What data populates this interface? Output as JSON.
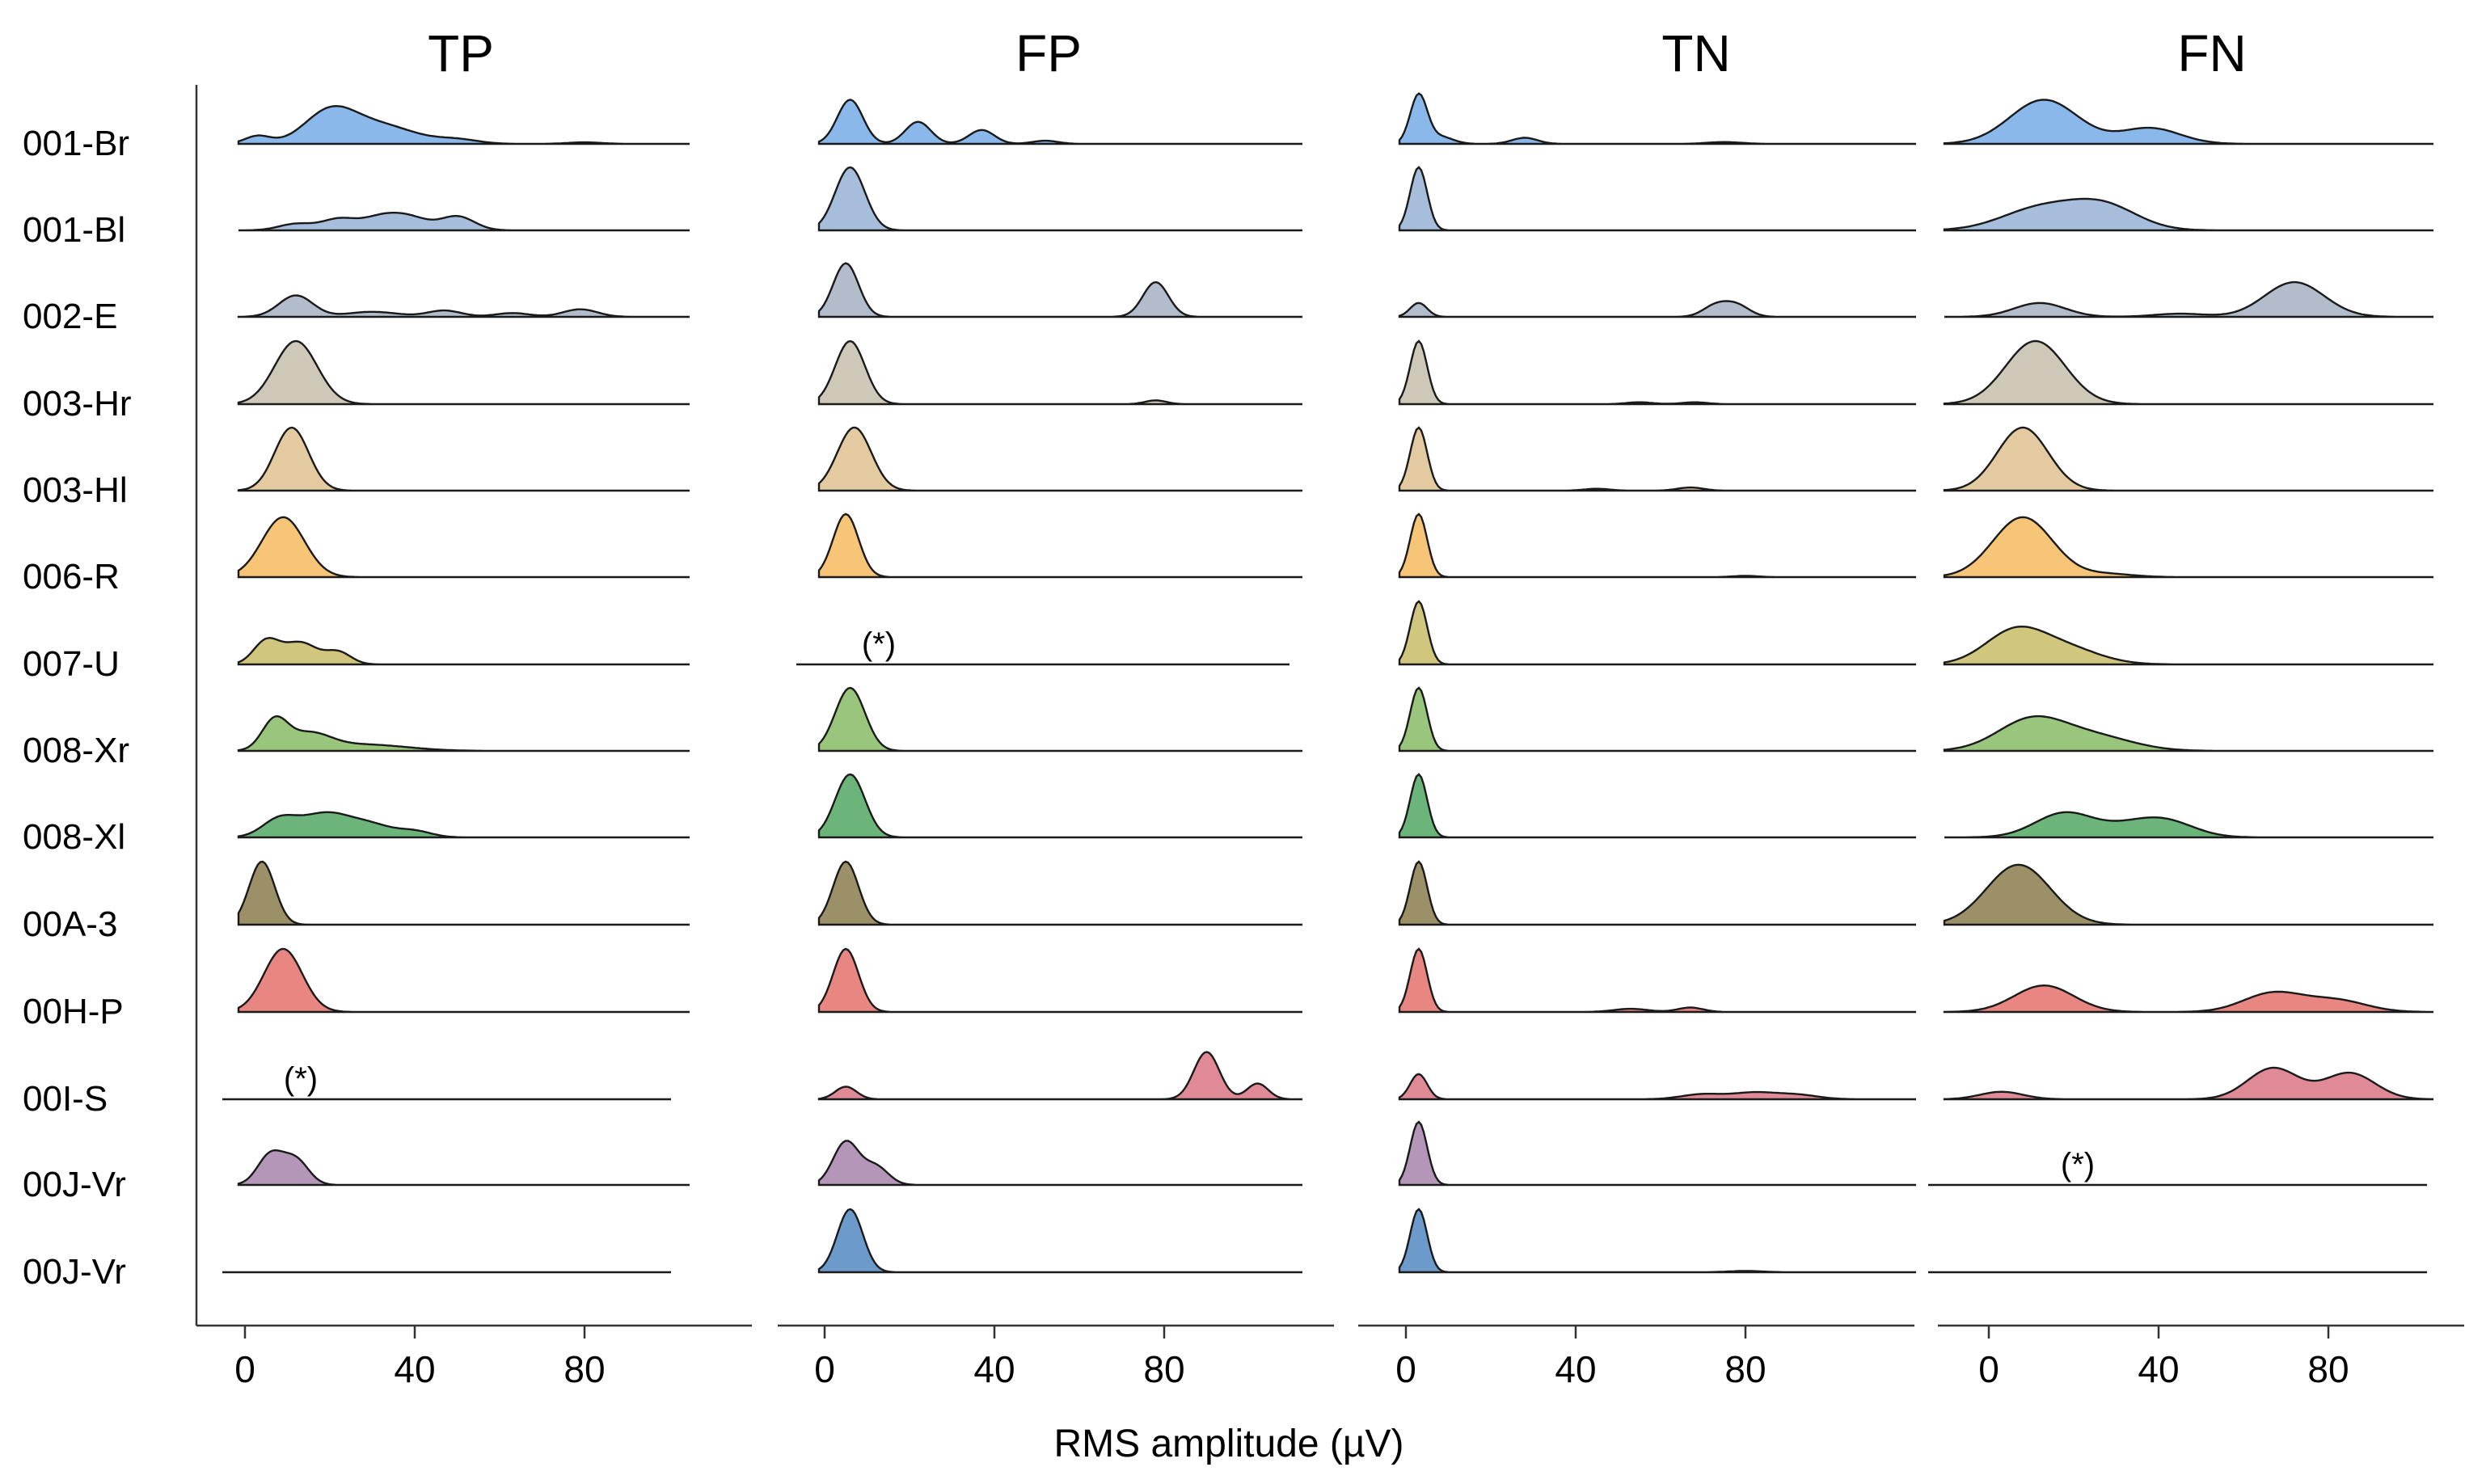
{
  "chart_data": {
    "type": "ridgeline",
    "xlabel": "RMS amplitude (µV)",
    "xticks": [
      0,
      40,
      80
    ],
    "panels": [
      "TP",
      "FP",
      "TN",
      "FN"
    ],
    "rows": [
      {
        "label": "001-Br",
        "color": "#8ab8ea"
      },
      {
        "label": "001-Bl",
        "color": "#a6bedb"
      },
      {
        "label": "002-E",
        "color": "#b3bccb"
      },
      {
        "label": "003-Hr",
        "color": "#cdc8b8"
      },
      {
        "label": "003-Hl",
        "color": "#e3caa0"
      },
      {
        "label": "006-R",
        "color": "#f7c577"
      },
      {
        "label": "007-U",
        "color": "#d1c67e"
      },
      {
        "label": "008-Xr",
        "color": "#9ac57c"
      },
      {
        "label": "008-Xl",
        "color": "#6cb57a"
      },
      {
        "label": "00A-3",
        "color": "#9c9068"
      },
      {
        "label": "00H-P",
        "color": "#e88682"
      },
      {
        "label": "00I-S",
        "color": "#e08a98"
      },
      {
        "label": "00J-Vr",
        "color": "#b497b8"
      },
      {
        "label": "00J-Vr",
        "color": "#6c9acb"
      }
    ],
    "no_data_marker": "(*)",
    "densities": {
      "TP": [
        [
          [
            3,
            3,
            0.15
          ],
          [
            20,
            6,
            0.6
          ],
          [
            32,
            8,
            0.35
          ],
          [
            50,
            5,
            0.08
          ],
          [
            80,
            4,
            0.03
          ]
        ],
        [
          [
            12,
            4,
            0.12
          ],
          [
            22,
            4,
            0.2
          ],
          [
            33,
            5,
            0.28
          ],
          [
            50,
            4,
            0.26
          ],
          [
            40,
            4,
            0.15
          ]
        ],
        [
          [
            12,
            4,
            0.34
          ],
          [
            30,
            6,
            0.08
          ],
          [
            47,
            4,
            0.1
          ],
          [
            63,
            4,
            0.06
          ],
          [
            79,
            4,
            0.12
          ]
        ],
        [
          [
            12,
            5,
            1.0
          ]
        ],
        [
          [
            11,
            4,
            1.0
          ]
        ],
        [
          [
            9,
            5,
            0.95
          ]
        ],
        [
          [
            5,
            3,
            0.42
          ],
          [
            13,
            4,
            0.4
          ],
          [
            22,
            3,
            0.22
          ]
        ],
        [
          [
            7,
            3,
            0.55
          ],
          [
            15,
            5,
            0.3
          ],
          [
            28,
            10,
            0.12
          ]
        ],
        [
          [
            8,
            4,
            0.28
          ],
          [
            19,
            6,
            0.4
          ],
          [
            40,
            4,
            0.1
          ],
          [
            30,
            5,
            0.18
          ]
        ],
        [
          [
            4,
            3,
            1.0
          ]
        ],
        [
          [
            9,
            4.5,
            1.0
          ]
        ],
        null,
        [
          [
            6,
            3,
            0.55
          ],
          [
            12,
            3,
            0.45
          ]
        ],
        null
      ],
      "FP": [
        [
          [
            6,
            3,
            0.7
          ],
          [
            22,
            3,
            0.35
          ],
          [
            37,
            3,
            0.22
          ],
          [
            52,
            3,
            0.05
          ]
        ],
        [
          [
            6,
            3.5,
            1.0
          ]
        ],
        [
          [
            5,
            3,
            0.85
          ],
          [
            78,
            3,
            0.55
          ]
        ],
        [
          [
            6,
            3.5,
            1.0
          ],
          [
            78,
            2.5,
            0.06
          ]
        ],
        [
          [
            7,
            4,
            1.0
          ]
        ],
        [
          [
            5,
            3,
            1.0
          ]
        ],
        null,
        [
          [
            6,
            3.5,
            1.0
          ]
        ],
        [
          [
            6,
            3.5,
            1.0
          ]
        ],
        [
          [
            5,
            3,
            1.0
          ]
        ],
        [
          [
            5,
            3,
            1.0
          ]
        ],
        [
          [
            5,
            2.5,
            0.2
          ],
          [
            90,
            3,
            0.75
          ],
          [
            102,
            2.5,
            0.25
          ]
        ],
        [
          [
            5,
            3,
            0.7
          ],
          [
            12,
            3,
            0.3
          ]
        ],
        [
          [
            6,
            3,
            1.0
          ]
        ]
      ],
      "TN": [
        [
          [
            3,
            2,
            0.8
          ],
          [
            8,
            3,
            0.12
          ],
          [
            28,
            3,
            0.1
          ],
          [
            75,
            4,
            0.03
          ]
        ],
        [
          [
            3,
            2,
            1.0
          ]
        ],
        [
          [
            3,
            2,
            0.25
          ],
          [
            73,
            3,
            0.2
          ],
          [
            78,
            3,
            0.2
          ]
        ],
        [
          [
            3,
            2,
            1.0
          ],
          [
            55,
            3,
            0.03
          ],
          [
            68,
            3,
            0.03
          ]
        ],
        [
          [
            3,
            2,
            1.0
          ],
          [
            45,
            3,
            0.03
          ],
          [
            67,
            3,
            0.05
          ]
        ],
        [
          [
            3,
            2,
            1.0
          ],
          [
            80,
            3,
            0.02
          ]
        ],
        [
          [
            3,
            2,
            1.0
          ]
        ],
        [
          [
            3,
            2,
            1.0
          ]
        ],
        [
          [
            3,
            2,
            1.0
          ]
        ],
        [
          [
            3,
            2,
            1.0
          ]
        ],
        [
          [
            3,
            2,
            1.0
          ],
          [
            53,
            4,
            0.05
          ],
          [
            67,
            3,
            0.07
          ]
        ],
        [
          [
            3,
            2,
            0.4
          ],
          [
            70,
            5,
            0.08
          ],
          [
            82,
            5,
            0.1
          ],
          [
            92,
            5,
            0.07
          ]
        ],
        [
          [
            3,
            2,
            1.0
          ]
        ],
        [
          [
            3,
            2,
            1.0
          ],
          [
            80,
            4,
            0.02
          ]
        ]
      ],
      "FN": [
        [
          [
            13,
            8,
            0.7
          ],
          [
            38,
            7,
            0.25
          ]
        ],
        [
          [
            12,
            9,
            0.45
          ],
          [
            27,
            8,
            0.5
          ]
        ],
        [
          [
            12,
            6,
            0.22
          ],
          [
            45,
            6,
            0.05
          ],
          [
            72,
            7,
            0.55
          ]
        ],
        [
          [
            11,
            7,
            1.0
          ]
        ],
        [
          [
            8,
            6,
            1.0
          ]
        ],
        [
          [
            8,
            7,
            0.95
          ],
          [
            28,
            6,
            0.05
          ]
        ],
        [
          [
            6,
            7,
            0.6
          ],
          [
            18,
            8,
            0.3
          ]
        ],
        [
          [
            10,
            8,
            0.55
          ],
          [
            25,
            9,
            0.25
          ]
        ],
        [
          [
            18,
            7,
            0.4
          ],
          [
            41,
            7,
            0.28
          ],
          [
            32,
            6,
            0.1
          ]
        ],
        [
          [
            7,
            7.5,
            0.95
          ]
        ],
        [
          [
            13,
            7,
            0.42
          ],
          [
            67,
            7,
            0.3
          ],
          [
            82,
            7,
            0.18
          ]
        ],
        [
          [
            3,
            5,
            0.12
          ],
          [
            67,
            6,
            0.5
          ],
          [
            85,
            6,
            0.42
          ]
        ],
        null,
        null
      ]
    }
  }
}
